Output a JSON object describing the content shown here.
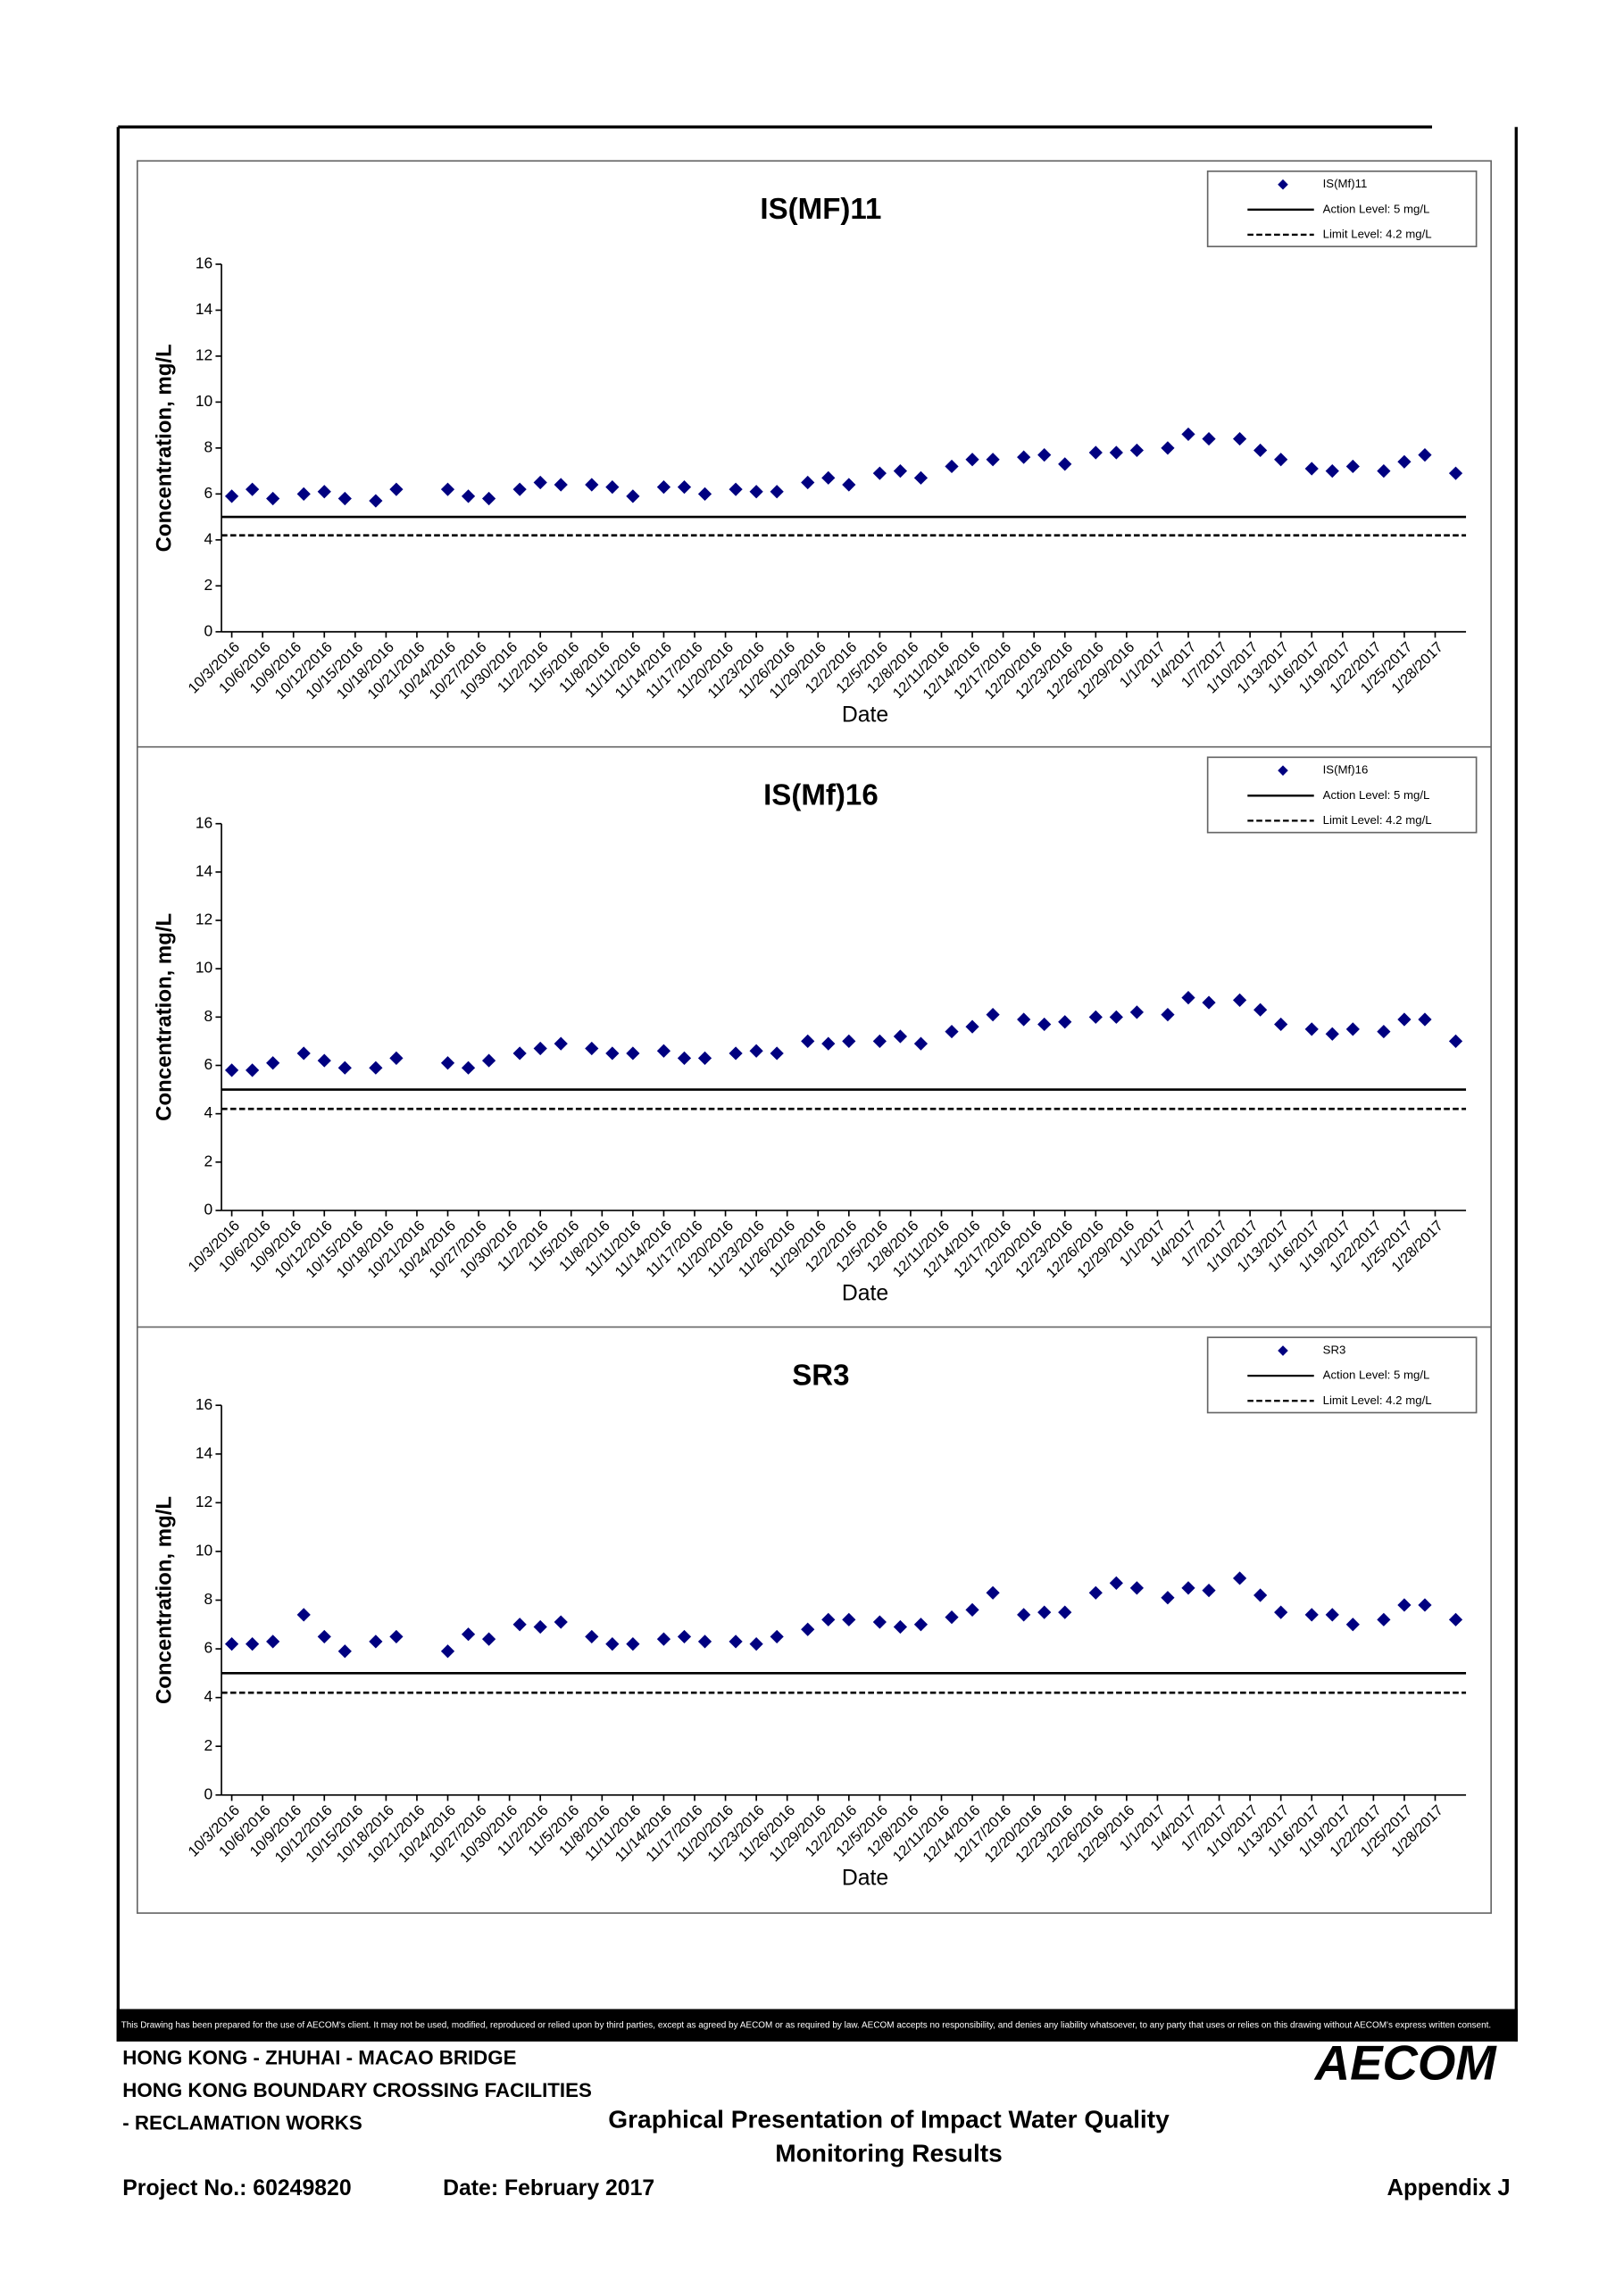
{
  "chart_data": [
    {
      "type": "scatter",
      "title": "IS(MF)11",
      "x_label": "Date",
      "y_label": "Concentration, mg/L",
      "x": [
        "10/3/2016",
        "10/5/2016",
        "10/7/2016",
        "10/10/2016",
        "10/12/2016",
        "10/14/2016",
        "10/17/2016",
        "10/19/2016",
        "10/24/2016",
        "10/26/2016",
        "10/28/2016",
        "10/31/2016",
        "11/2/2016",
        "11/4/2016",
        "11/7/2016",
        "11/9/2016",
        "11/11/2016",
        "11/14/2016",
        "11/16/2016",
        "11/18/2016",
        "11/21/2016",
        "11/23/2016",
        "11/25/2016",
        "11/28/2016",
        "11/30/2016",
        "12/2/2016",
        "12/5/2016",
        "12/7/2016",
        "12/9/2016",
        "12/12/2016",
        "12/14/2016",
        "12/16/2016",
        "12/19/2016",
        "12/21/2016",
        "12/23/2016",
        "12/26/2016",
        "12/28/2016",
        "12/30/2016",
        "1/2/2017",
        "1/4/2017",
        "1/6/2017",
        "1/9/2017",
        "1/11/2017",
        "1/13/2017",
        "1/16/2017",
        "1/18/2017",
        "1/20/2017",
        "1/23/2017",
        "1/25/2017",
        "1/27/2017",
        "1/30/2017"
      ],
      "series": [
        {
          "name": "IS(Mf)11",
          "color": "#000080",
          "marker": "diamond",
          "values": [
            5.9,
            6.2,
            5.8,
            6.0,
            6.1,
            5.8,
            5.7,
            6.2,
            6.2,
            5.9,
            5.8,
            6.2,
            6.5,
            6.4,
            6.4,
            6.3,
            5.9,
            6.3,
            6.3,
            6.0,
            6.2,
            6.1,
            6.1,
            6.5,
            6.7,
            6.4,
            6.9,
            7.0,
            6.7,
            7.2,
            7.5,
            7.5,
            7.6,
            7.7,
            7.3,
            7.8,
            7.8,
            7.9,
            8.0,
            8.6,
            8.4,
            8.4,
            7.9,
            7.5,
            7.1,
            7.0,
            7.2,
            7.0,
            7.4,
            7.7,
            6.9
          ]
        }
      ],
      "reference_lines": [
        {
          "name": "Action Level: 5 mg/L",
          "value": 5,
          "style": "solid"
        },
        {
          "name": "Limit Level: 4.2 mg/L",
          "value": 4.2,
          "style": "dashed"
        }
      ],
      "xlim": [
        "10/2/2016",
        "1/31/2017"
      ],
      "xticks": [
        "10/3/2016",
        "10/6/2016",
        "10/9/2016",
        "10/12/2016",
        "10/15/2016",
        "10/18/2016",
        "10/21/2016",
        "10/24/2016",
        "10/27/2016",
        "10/30/2016",
        "11/2/2016",
        "11/5/2016",
        "11/8/2016",
        "11/11/2016",
        "11/14/2016",
        "11/17/2016",
        "11/20/2016",
        "11/23/2016",
        "11/26/2016",
        "11/29/2016",
        "12/2/2016",
        "12/5/2016",
        "12/8/2016",
        "12/11/2016",
        "12/14/2016",
        "12/17/2016",
        "12/20/2016",
        "12/23/2016",
        "12/26/2016",
        "12/29/2016",
        "1/1/2017",
        "1/4/2017",
        "1/7/2017",
        "1/10/2017",
        "1/13/2017",
        "1/16/2017",
        "1/19/2017",
        "1/22/2017",
        "1/25/2017",
        "1/28/2017"
      ],
      "ylim": [
        0,
        16
      ],
      "yticks": [
        0,
        2,
        4,
        6,
        8,
        10,
        12,
        14,
        16
      ],
      "legend": "upper right"
    },
    {
      "type": "scatter",
      "title": "IS(Mf)16",
      "x_label": "Date",
      "y_label": "Concentration, mg/L",
      "x": [
        "10/3/2016",
        "10/5/2016",
        "10/7/2016",
        "10/10/2016",
        "10/12/2016",
        "10/14/2016",
        "10/17/2016",
        "10/19/2016",
        "10/24/2016",
        "10/26/2016",
        "10/28/2016",
        "10/31/2016",
        "11/2/2016",
        "11/4/2016",
        "11/7/2016",
        "11/9/2016",
        "11/11/2016",
        "11/14/2016",
        "11/16/2016",
        "11/18/2016",
        "11/21/2016",
        "11/23/2016",
        "11/25/2016",
        "11/28/2016",
        "11/30/2016",
        "12/2/2016",
        "12/5/2016",
        "12/7/2016",
        "12/9/2016",
        "12/12/2016",
        "12/14/2016",
        "12/16/2016",
        "12/19/2016",
        "12/21/2016",
        "12/23/2016",
        "12/26/2016",
        "12/28/2016",
        "12/30/2016",
        "1/2/2017",
        "1/4/2017",
        "1/6/2017",
        "1/9/2017",
        "1/11/2017",
        "1/13/2017",
        "1/16/2017",
        "1/18/2017",
        "1/20/2017",
        "1/23/2017",
        "1/25/2017",
        "1/27/2017",
        "1/30/2017"
      ],
      "series": [
        {
          "name": "IS(Mf)16",
          "color": "#000080",
          "marker": "diamond",
          "values": [
            5.8,
            5.8,
            6.1,
            6.5,
            6.2,
            5.9,
            5.9,
            6.3,
            6.1,
            5.9,
            6.2,
            6.5,
            6.7,
            6.9,
            6.7,
            6.5,
            6.5,
            6.6,
            6.3,
            6.3,
            6.5,
            6.6,
            6.5,
            7.0,
            6.9,
            7.0,
            7.0,
            7.2,
            6.9,
            7.4,
            7.6,
            8.1,
            7.9,
            7.7,
            7.8,
            8.0,
            8.0,
            8.2,
            8.1,
            8.8,
            8.6,
            8.7,
            8.3,
            7.7,
            7.5,
            7.3,
            7.5,
            7.4,
            7.9,
            7.9,
            7.0
          ]
        }
      ],
      "reference_lines": [
        {
          "name": "Action Level: 5 mg/L",
          "value": 5,
          "style": "solid"
        },
        {
          "name": "Limit Level: 4.2 mg/L",
          "value": 4.2,
          "style": "dashed"
        }
      ],
      "xlim": [
        "10/2/2016",
        "1/31/2017"
      ],
      "xticks": [
        "10/3/2016",
        "10/6/2016",
        "10/9/2016",
        "10/12/2016",
        "10/15/2016",
        "10/18/2016",
        "10/21/2016",
        "10/24/2016",
        "10/27/2016",
        "10/30/2016",
        "11/2/2016",
        "11/5/2016",
        "11/8/2016",
        "11/11/2016",
        "11/14/2016",
        "11/17/2016",
        "11/20/2016",
        "11/23/2016",
        "11/26/2016",
        "11/29/2016",
        "12/2/2016",
        "12/5/2016",
        "12/8/2016",
        "12/11/2016",
        "12/14/2016",
        "12/17/2016",
        "12/20/2016",
        "12/23/2016",
        "12/26/2016",
        "12/29/2016",
        "1/1/2017",
        "1/4/2017",
        "1/7/2017",
        "1/10/2017",
        "1/13/2017",
        "1/16/2017",
        "1/19/2017",
        "1/22/2017",
        "1/25/2017",
        "1/28/2017"
      ],
      "ylim": [
        0,
        16
      ],
      "yticks": [
        0,
        2,
        4,
        6,
        8,
        10,
        12,
        14,
        16
      ],
      "legend": "upper right"
    },
    {
      "type": "scatter",
      "title": "SR3",
      "x_label": "Date",
      "y_label": "Concentration, mg/L",
      "x": [
        "10/3/2016",
        "10/5/2016",
        "10/7/2016",
        "10/10/2016",
        "10/12/2016",
        "10/14/2016",
        "10/17/2016",
        "10/19/2016",
        "10/24/2016",
        "10/26/2016",
        "10/28/2016",
        "10/31/2016",
        "11/2/2016",
        "11/4/2016",
        "11/7/2016",
        "11/9/2016",
        "11/11/2016",
        "11/14/2016",
        "11/16/2016",
        "11/18/2016",
        "11/21/2016",
        "11/23/2016",
        "11/25/2016",
        "11/28/2016",
        "11/30/2016",
        "12/2/2016",
        "12/5/2016",
        "12/7/2016",
        "12/9/2016",
        "12/12/2016",
        "12/14/2016",
        "12/16/2016",
        "12/19/2016",
        "12/21/2016",
        "12/23/2016",
        "12/26/2016",
        "12/28/2016",
        "12/30/2016",
        "1/2/2017",
        "1/4/2017",
        "1/6/2017",
        "1/9/2017",
        "1/11/2017",
        "1/13/2017",
        "1/16/2017",
        "1/18/2017",
        "1/20/2017",
        "1/23/2017",
        "1/25/2017",
        "1/27/2017",
        "1/30/2017"
      ],
      "series": [
        {
          "name": "SR3",
          "color": "#000080",
          "marker": "diamond",
          "values": [
            6.2,
            6.2,
            6.3,
            7.4,
            6.5,
            5.9,
            6.3,
            6.5,
            5.9,
            6.6,
            6.4,
            7.0,
            6.9,
            7.1,
            6.5,
            6.2,
            6.2,
            6.4,
            6.5,
            6.3,
            6.3,
            6.2,
            6.5,
            6.8,
            7.2,
            7.2,
            7.1,
            6.9,
            7.0,
            7.3,
            7.6,
            8.3,
            7.4,
            7.5,
            7.5,
            8.3,
            8.7,
            8.5,
            8.1,
            8.5,
            8.4,
            8.9,
            8.2,
            7.5,
            7.4,
            7.4,
            7.0,
            7.2,
            7.8,
            7.8,
            7.2
          ]
        }
      ],
      "reference_lines": [
        {
          "name": "Action Level: 5 mg/L",
          "value": 5,
          "style": "solid"
        },
        {
          "name": "Limit Level: 4.2 mg/L",
          "value": 4.2,
          "style": "dashed"
        }
      ],
      "xlim": [
        "10/2/2016",
        "1/31/2017"
      ],
      "xticks": [
        "10/3/2016",
        "10/6/2016",
        "10/9/2016",
        "10/12/2016",
        "10/15/2016",
        "10/18/2016",
        "10/21/2016",
        "10/24/2016",
        "10/27/2016",
        "10/30/2016",
        "11/2/2016",
        "11/5/2016",
        "11/8/2016",
        "11/11/2016",
        "11/14/2016",
        "11/17/2016",
        "11/20/2016",
        "11/23/2016",
        "11/26/2016",
        "11/29/2016",
        "12/2/2016",
        "12/5/2016",
        "12/8/2016",
        "12/11/2016",
        "12/14/2016",
        "12/17/2016",
        "12/20/2016",
        "12/23/2016",
        "12/26/2016",
        "12/29/2016",
        "1/1/2017",
        "1/4/2017",
        "1/7/2017",
        "1/10/2017",
        "1/13/2017",
        "1/16/2017",
        "1/19/2017",
        "1/22/2017",
        "1/25/2017",
        "1/28/2017"
      ],
      "ylim": [
        0,
        16
      ],
      "yticks": [
        0,
        2,
        4,
        6,
        8,
        10,
        12,
        14,
        16
      ],
      "legend": "upper right"
    }
  ],
  "page": {
    "disclaimer": "This Drawing has been prepared for the use of AECOM's client. It may not be used, modified, reproduced or relied upon by third parties, except as agreed by AECOM or as required by law. AECOM accepts no responsibility, and denies any liability whatsoever, to any party that uses or relies on this drawing without AECOM's express written consent.",
    "project_lines": [
      "HONG KONG - ZHUHAI - MACAO BRIDGE",
      "HONG KONG BOUNDARY CROSSING FACILITIES",
      "- RECLAMATION WORKS"
    ],
    "title_lines": [
      "Graphical Presentation of Impact Water Quality",
      "Monitoring Results"
    ],
    "logo": "AECOM",
    "project_no": "Project No.: 60249820",
    "date": "Date: February 2017",
    "appendix": "Appendix J"
  }
}
